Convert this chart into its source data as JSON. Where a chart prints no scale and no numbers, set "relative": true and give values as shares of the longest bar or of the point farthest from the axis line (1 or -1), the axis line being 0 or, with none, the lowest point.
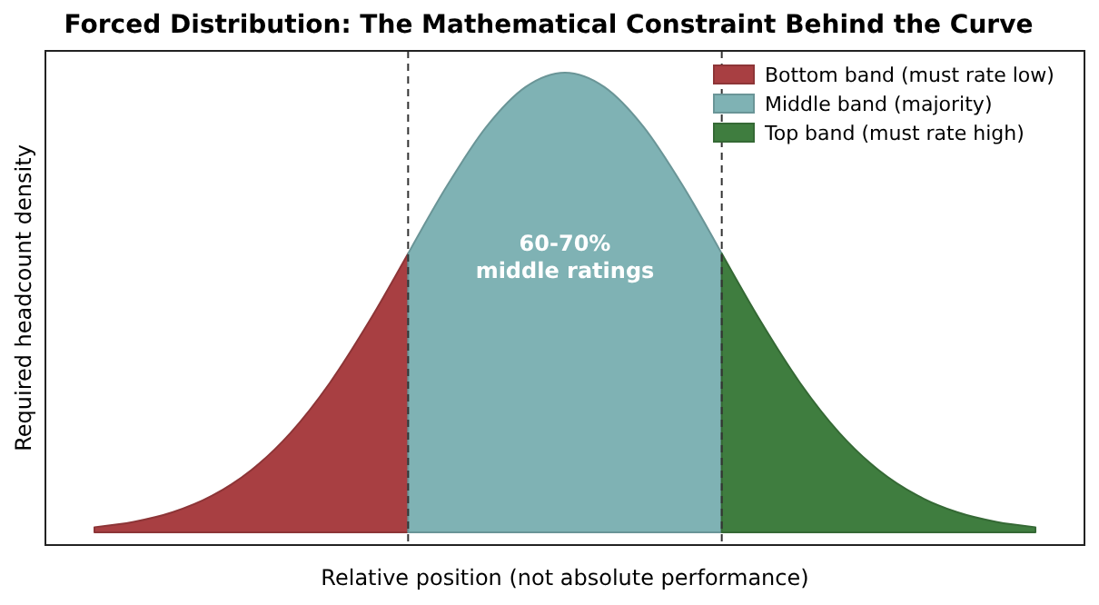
{
  "chart_data": {
    "type": "area",
    "title": "Forced Distribution: The Mathematical Constraint Behind the Curve",
    "xlabel": "Relative position (not absolute performance)",
    "ylabel": "Required headcount density",
    "relative": true,
    "legend": "top right",
    "tick_labels": false,
    "categories": [
      null,
      null,
      null,
      null,
      null,
      null,
      null,
      null,
      null,
      null,
      null,
      null,
      null,
      null,
      null,
      null,
      null,
      null,
      null,
      null,
      null,
      null,
      null,
      null,
      null
    ],
    "series": [
      {
        "name": "Bottom band (must rate low)",
        "color": "#a83f42",
        "values": [
          0.0111,
          0.0228,
          0.0439,
          0.0796,
          0.1353,
          0.2163,
          0.3247,
          0.4578,
          0.6065,
          null,
          null,
          null,
          null,
          null,
          null,
          null,
          null,
          null,
          null,
          null,
          null,
          null,
          null,
          null,
          null
        ]
      },
      {
        "name": "Middle band (majority)",
        "color": "#7fb2b4",
        "values": [
          null,
          null,
          null,
          null,
          null,
          null,
          null,
          null,
          0.6065,
          0.7548,
          0.8825,
          0.969,
          1,
          0.969,
          0.8825,
          0.7548,
          0.6065,
          null,
          null,
          null,
          null,
          null,
          null,
          null,
          null
        ]
      },
      {
        "name": "Top band (must rate high)",
        "color": "#3f7d3f",
        "values": [
          null,
          null,
          null,
          null,
          null,
          null,
          null,
          null,
          null,
          null,
          null,
          null,
          null,
          null,
          null,
          null,
          0.6065,
          0.4578,
          0.3247,
          0.2163,
          0.1353,
          0.0796,
          0.0439,
          0.0228,
          0.0111
        ]
      }
    ],
    "annotations": [
      "60-70%\nmiddle ratings"
    ]
  }
}
